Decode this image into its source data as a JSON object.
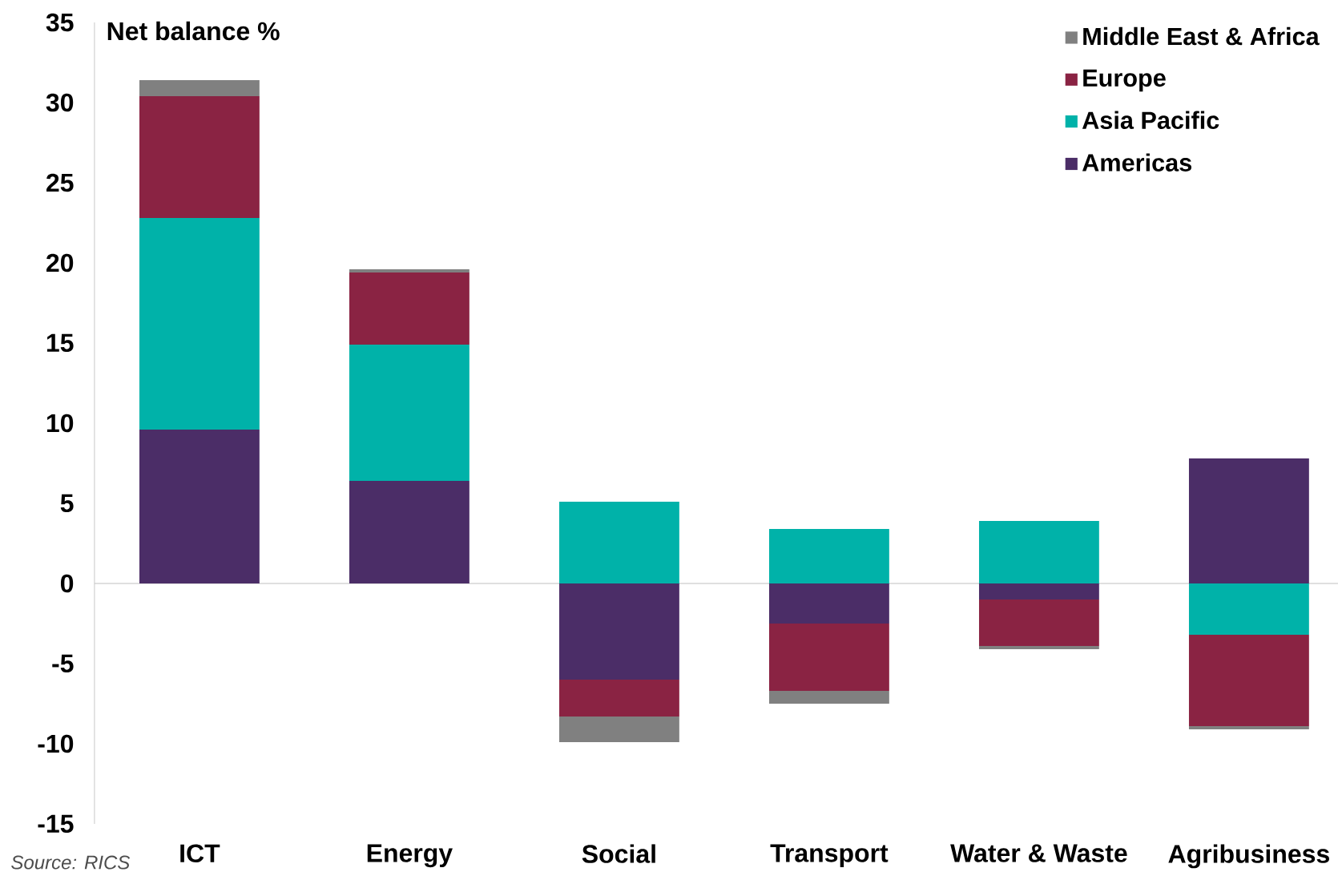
{
  "chart_data": {
    "type": "bar",
    "stacked": true,
    "ylabel": "Net balance %",
    "categories": [
      "ICT",
      "Energy",
      "Social",
      "Transport",
      "Water & Waste",
      "Agribusiness"
    ],
    "series": [
      {
        "name": "Americas",
        "color": "#4b2d67",
        "values": [
          9.6,
          6.4,
          -6.0,
          -2.5,
          -1.0,
          7.8
        ]
      },
      {
        "name": "Asia Pacific",
        "color": "#00b2a9",
        "values": [
          13.2,
          8.5,
          5.1,
          3.4,
          3.9,
          -3.2
        ]
      },
      {
        "name": "Europe",
        "color": "#8a2343",
        "values": [
          7.6,
          4.5,
          -2.3,
          -4.2,
          -2.9,
          -5.7
        ]
      },
      {
        "name": "Middle East & Africa",
        "color": "#808080",
        "values": [
          1.0,
          0.2,
          -1.6,
          -0.8,
          -0.2,
          -0.2
        ]
      }
    ],
    "ylim": [
      -15,
      35
    ],
    "yticks": [
      -15,
      -10,
      -5,
      0,
      5,
      10,
      15,
      20,
      25,
      30,
      35
    ],
    "legend": "top right",
    "annotations": [
      "Source: RICS"
    ]
  }
}
